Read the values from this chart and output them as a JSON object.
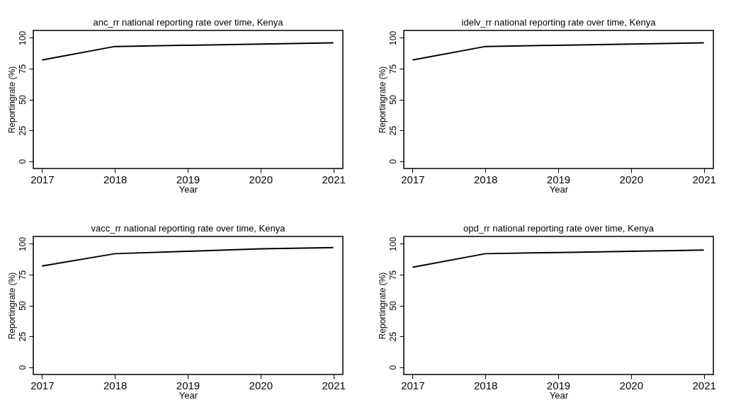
{
  "chart_data": [
    {
      "type": "line",
      "title": "anc_rr national reporting rate over time, Kenya",
      "xlabel": "Year",
      "ylabel": "Reportingrate (%)",
      "x": [
        2017,
        2018,
        2019,
        2020,
        2021
      ],
      "series": [
        {
          "color": "#000000",
          "values": [
            82,
            93,
            94,
            95,
            96
          ]
        }
      ],
      "xlim": [
        2016.88,
        2021.13
      ],
      "xticks": [
        2017,
        2018,
        2019,
        2020,
        2021
      ],
      "ylim": [
        -6,
        106
      ],
      "yticks": [
        0,
        25,
        50,
        75,
        100
      ]
    },
    {
      "type": "line",
      "title": "idelv_rr national reporting rate over time, Kenya",
      "xlabel": "Year",
      "ylabel": "Reportingrate (%)",
      "x": [
        2017,
        2018,
        2019,
        2020,
        2021
      ],
      "series": [
        {
          "color": "#000000",
          "values": [
            82,
            93,
            94,
            95,
            96
          ]
        }
      ],
      "xlim": [
        2016.88,
        2021.13
      ],
      "xticks": [
        2017,
        2018,
        2019,
        2020,
        2021
      ],
      "ylim": [
        -6,
        106
      ],
      "yticks": [
        0,
        25,
        50,
        75,
        100
      ]
    },
    {
      "type": "line",
      "title": "vacc_rr national reporting rate over time, Kenya",
      "xlabel": "Year",
      "ylabel": "Reportingrate (%)",
      "x": [
        2017,
        2018,
        2019,
        2020,
        2021
      ],
      "series": [
        {
          "color": "#000000",
          "values": [
            82,
            92,
            94,
            96,
            97
          ]
        }
      ],
      "xlim": [
        2016.88,
        2021.13
      ],
      "xticks": [
        2017,
        2018,
        2019,
        2020,
        2021
      ],
      "ylim": [
        -6,
        106
      ],
      "yticks": [
        0,
        25,
        50,
        75,
        100
      ]
    },
    {
      "type": "line",
      "title": "opd_rr national reporting rate over time, Kenya",
      "xlabel": "Year",
      "ylabel": "Reportingrate (%)",
      "x": [
        2017,
        2018,
        2019,
        2020,
        2021
      ],
      "series": [
        {
          "color": "#000000",
          "values": [
            81,
            92,
            93,
            94,
            95
          ]
        }
      ],
      "xlim": [
        2016.88,
        2021.13
      ],
      "xticks": [
        2017,
        2018,
        2019,
        2020,
        2021
      ],
      "ylim": [
        -6,
        106
      ],
      "yticks": [
        0,
        25,
        50,
        75,
        100
      ]
    }
  ]
}
